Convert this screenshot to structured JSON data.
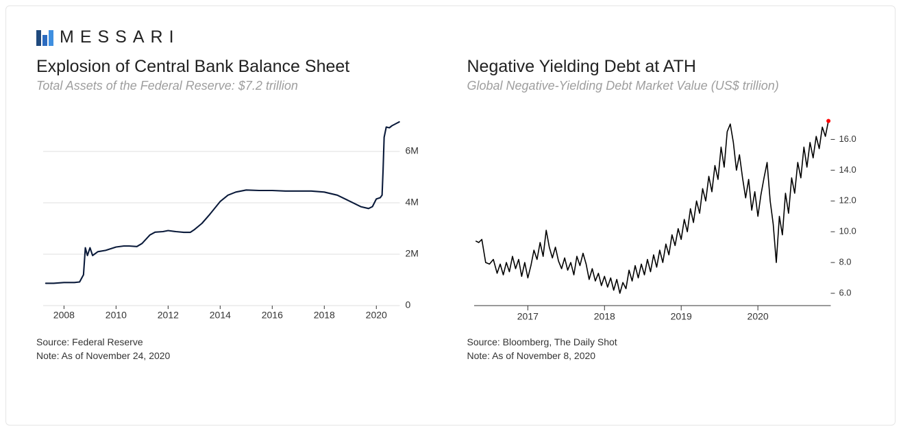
{
  "brand": {
    "name": "MESSARI"
  },
  "layout": {
    "card_border_color": "#e5e5e5",
    "background_color": "#ffffff"
  },
  "logo": {
    "bars": [
      {
        "x": 0,
        "y": 5,
        "w": 7,
        "h": 23,
        "fill": "#1f497d"
      },
      {
        "x": 9,
        "y": 12,
        "w": 7,
        "h": 16,
        "fill": "#2c6bbf"
      },
      {
        "x": 18,
        "y": 5,
        "w": 7,
        "h": 23,
        "fill": "#3f8fe0"
      }
    ]
  },
  "left_chart": {
    "type": "line",
    "title": "Explosion of Central Bank Balance Sheet",
    "subtitle": "Total Assets of the Federal Reserve: $7.2 trillion",
    "source_line1": "Source: Federal Reserve",
    "source_line2": "Note: As of November 24, 2020",
    "x_range": [
      2007.2,
      2020.9
    ],
    "x_ticks": [
      2008,
      2010,
      2012,
      2014,
      2016,
      2018,
      2020
    ],
    "y_range": [
      0,
      7.2
    ],
    "y_ticks": [
      {
        "v": 0,
        "label": "0"
      },
      {
        "v": 2,
        "label": "2M"
      },
      {
        "v": 4,
        "label": "4M"
      },
      {
        "v": 6,
        "label": "6M"
      }
    ],
    "line_color": "#0a1a3a",
    "line_width": 2.1,
    "grid_color": "#bfbfbf",
    "grid_width": 0.6,
    "axis_color": "#333333",
    "font_size_ticks": 14,
    "series": [
      [
        2007.3,
        0.87
      ],
      [
        2007.6,
        0.87
      ],
      [
        2008.0,
        0.9
      ],
      [
        2008.4,
        0.9
      ],
      [
        2008.6,
        0.92
      ],
      [
        2008.75,
        1.2
      ],
      [
        2008.82,
        2.25
      ],
      [
        2008.9,
        1.95
      ],
      [
        2009.0,
        2.25
      ],
      [
        2009.1,
        1.95
      ],
      [
        2009.3,
        2.1
      ],
      [
        2009.6,
        2.15
      ],
      [
        2010.0,
        2.28
      ],
      [
        2010.3,
        2.32
      ],
      [
        2010.5,
        2.32
      ],
      [
        2010.8,
        2.3
      ],
      [
        2011.0,
        2.42
      ],
      [
        2011.3,
        2.75
      ],
      [
        2011.5,
        2.86
      ],
      [
        2011.8,
        2.88
      ],
      [
        2012.0,
        2.92
      ],
      [
        2012.3,
        2.88
      ],
      [
        2012.6,
        2.85
      ],
      [
        2012.85,
        2.85
      ],
      [
        2013.0,
        2.95
      ],
      [
        2013.3,
        3.2
      ],
      [
        2013.6,
        3.55
      ],
      [
        2014.0,
        4.05
      ],
      [
        2014.3,
        4.3
      ],
      [
        2014.6,
        4.42
      ],
      [
        2015.0,
        4.5
      ],
      [
        2015.5,
        4.48
      ],
      [
        2016.0,
        4.48
      ],
      [
        2016.5,
        4.46
      ],
      [
        2017.0,
        4.46
      ],
      [
        2017.5,
        4.46
      ],
      [
        2018.0,
        4.42
      ],
      [
        2018.5,
        4.3
      ],
      [
        2019.0,
        4.05
      ],
      [
        2019.4,
        3.85
      ],
      [
        2019.7,
        3.78
      ],
      [
        2019.85,
        3.85
      ],
      [
        2020.0,
        4.15
      ],
      [
        2020.15,
        4.2
      ],
      [
        2020.22,
        4.3
      ],
      [
        2020.26,
        5.3
      ],
      [
        2020.3,
        6.55
      ],
      [
        2020.38,
        6.95
      ],
      [
        2020.5,
        6.92
      ],
      [
        2020.6,
        7.0
      ],
      [
        2020.75,
        7.08
      ],
      [
        2020.88,
        7.15
      ]
    ]
  },
  "right_chart": {
    "type": "line",
    "title": "Negative Yielding Debt at ATH",
    "subtitle": "Global Negative-Yielding Debt Market Value (US$ trillion)",
    "source_line1": "Source: Bloomberg, The Daily Shot",
    "source_line2": "Note: As of November 8, 2020",
    "x_range": [
      2016.3,
      2020.95
    ],
    "x_ticks": [
      2017,
      2018,
      2019,
      2020
    ],
    "y_range": [
      5.2,
      17.4
    ],
    "y_ticks": [
      {
        "v": 6,
        "label": "6.0"
      },
      {
        "v": 8,
        "label": "8.0"
      },
      {
        "v": 10,
        "label": "10.0"
      },
      {
        "v": 12,
        "label": "12.0"
      },
      {
        "v": 14,
        "label": "14.0"
      },
      {
        "v": 16,
        "label": "16.0"
      }
    ],
    "line_color": "#000000",
    "line_width": 1.6,
    "axis_color": "#333333",
    "marker_end": {
      "color": "#ff0000",
      "r": 3
    },
    "font_size_ticks": 13,
    "series": [
      [
        2016.32,
        9.4
      ],
      [
        2016.36,
        9.3
      ],
      [
        2016.4,
        9.5
      ],
      [
        2016.45,
        8.0
      ],
      [
        2016.5,
        7.9
      ],
      [
        2016.55,
        8.2
      ],
      [
        2016.6,
        7.3
      ],
      [
        2016.64,
        7.9
      ],
      [
        2016.68,
        7.2
      ],
      [
        2016.72,
        8.0
      ],
      [
        2016.76,
        7.4
      ],
      [
        2016.8,
        8.4
      ],
      [
        2016.84,
        7.6
      ],
      [
        2016.88,
        8.2
      ],
      [
        2016.92,
        7.1
      ],
      [
        2016.96,
        8.0
      ],
      [
        2017.0,
        7.0
      ],
      [
        2017.04,
        7.8
      ],
      [
        2017.08,
        8.8
      ],
      [
        2017.12,
        8.2
      ],
      [
        2017.16,
        9.3
      ],
      [
        2017.2,
        8.4
      ],
      [
        2017.24,
        10.1
      ],
      [
        2017.28,
        9.0
      ],
      [
        2017.32,
        8.3
      ],
      [
        2017.36,
        9.0
      ],
      [
        2017.4,
        8.1
      ],
      [
        2017.44,
        7.6
      ],
      [
        2017.48,
        8.3
      ],
      [
        2017.52,
        7.5
      ],
      [
        2017.56,
        8.0
      ],
      [
        2017.6,
        7.2
      ],
      [
        2017.64,
        8.4
      ],
      [
        2017.68,
        7.8
      ],
      [
        2017.72,
        8.6
      ],
      [
        2017.76,
        7.9
      ],
      [
        2017.8,
        6.9
      ],
      [
        2017.84,
        7.6
      ],
      [
        2017.88,
        6.8
      ],
      [
        2017.92,
        7.3
      ],
      [
        2017.96,
        6.5
      ],
      [
        2018.0,
        7.1
      ],
      [
        2018.04,
        6.4
      ],
      [
        2018.08,
        7.0
      ],
      [
        2018.12,
        6.2
      ],
      [
        2018.16,
        6.9
      ],
      [
        2018.2,
        6.0
      ],
      [
        2018.24,
        6.7
      ],
      [
        2018.28,
        6.3
      ],
      [
        2018.32,
        7.5
      ],
      [
        2018.36,
        6.8
      ],
      [
        2018.4,
        7.8
      ],
      [
        2018.44,
        7.0
      ],
      [
        2018.48,
        7.9
      ],
      [
        2018.52,
        7.2
      ],
      [
        2018.56,
        8.2
      ],
      [
        2018.6,
        7.4
      ],
      [
        2018.64,
        8.5
      ],
      [
        2018.68,
        7.7
      ],
      [
        2018.72,
        8.8
      ],
      [
        2018.76,
        8.0
      ],
      [
        2018.8,
        9.2
      ],
      [
        2018.84,
        8.5
      ],
      [
        2018.88,
        9.8
      ],
      [
        2018.92,
        9.1
      ],
      [
        2018.96,
        10.2
      ],
      [
        2019.0,
        9.5
      ],
      [
        2019.04,
        10.8
      ],
      [
        2019.08,
        10.0
      ],
      [
        2019.12,
        11.5
      ],
      [
        2019.16,
        10.6
      ],
      [
        2019.2,
        12.0
      ],
      [
        2019.24,
        11.2
      ],
      [
        2019.28,
        12.8
      ],
      [
        2019.32,
        12.0
      ],
      [
        2019.36,
        13.6
      ],
      [
        2019.4,
        12.6
      ],
      [
        2019.44,
        14.3
      ],
      [
        2019.48,
        13.4
      ],
      [
        2019.52,
        15.5
      ],
      [
        2019.56,
        14.2
      ],
      [
        2019.6,
        16.5
      ],
      [
        2019.64,
        17.0
      ],
      [
        2019.68,
        15.8
      ],
      [
        2019.72,
        14.0
      ],
      [
        2019.76,
        15.0
      ],
      [
        2019.8,
        13.5
      ],
      [
        2019.84,
        12.2
      ],
      [
        2019.88,
        13.4
      ],
      [
        2019.92,
        11.4
      ],
      [
        2019.96,
        12.6
      ],
      [
        2020.0,
        11.0
      ],
      [
        2020.04,
        12.4
      ],
      [
        2020.08,
        13.5
      ],
      [
        2020.12,
        14.5
      ],
      [
        2020.16,
        12.0
      ],
      [
        2020.2,
        10.5
      ],
      [
        2020.24,
        8.0
      ],
      [
        2020.28,
        11.0
      ],
      [
        2020.32,
        9.8
      ],
      [
        2020.36,
        12.5
      ],
      [
        2020.4,
        11.2
      ],
      [
        2020.44,
        13.5
      ],
      [
        2020.48,
        12.5
      ],
      [
        2020.52,
        14.5
      ],
      [
        2020.56,
        13.5
      ],
      [
        2020.6,
        15.5
      ],
      [
        2020.64,
        14.2
      ],
      [
        2020.68,
        15.8
      ],
      [
        2020.72,
        14.8
      ],
      [
        2020.76,
        16.2
      ],
      [
        2020.8,
        15.4
      ],
      [
        2020.84,
        16.8
      ],
      [
        2020.88,
        16.2
      ],
      [
        2020.92,
        17.2
      ]
    ]
  }
}
